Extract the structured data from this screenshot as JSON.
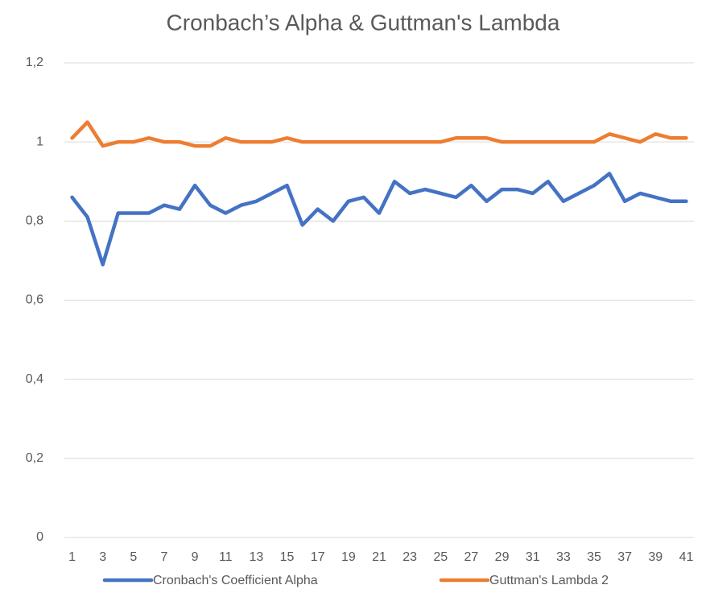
{
  "chart_data": {
    "type": "line",
    "title": "Cronbach’s Alpha & Guttman's Lambda",
    "categories": [
      "1",
      null,
      "3",
      null,
      "5",
      null,
      "7",
      null,
      "9",
      null,
      "11",
      null,
      "13",
      null,
      "15",
      null,
      "17",
      null,
      "19",
      null,
      "21",
      null,
      "23",
      null,
      "25",
      null,
      "27",
      null,
      "29",
      null,
      "31",
      null,
      "33",
      null,
      "35",
      null,
      "37",
      null,
      "39",
      null,
      "41"
    ],
    "series": [
      {
        "name": "Cronbach's Coefficient Alpha",
        "color": "#4472c4",
        "values": [
          0.86,
          0.81,
          0.69,
          0.82,
          0.82,
          0.82,
          0.84,
          0.83,
          0.89,
          0.84,
          0.82,
          0.84,
          0.85,
          0.87,
          0.89,
          0.79,
          0.83,
          0.8,
          0.85,
          0.86,
          0.82,
          0.9,
          0.87,
          0.88,
          0.87,
          0.86,
          0.89,
          0.85,
          0.88,
          0.88,
          0.87,
          0.9,
          0.85,
          0.87,
          0.89,
          0.92,
          0.85,
          0.87,
          0.86,
          0.85,
          0.85
        ]
      },
      {
        "name": "Guttman's Lambda 2",
        "color": "#ed7d31",
        "values": [
          1.01,
          1.05,
          0.99,
          1.0,
          1.0,
          1.01,
          1.0,
          1.0,
          0.99,
          0.99,
          1.01,
          1.0,
          1.0,
          1.0,
          1.01,
          1.0,
          1.0,
          1.0,
          1.0,
          1.0,
          1.0,
          1.0,
          1.0,
          1.0,
          1.0,
          1.01,
          1.01,
          1.01,
          1.0,
          1.0,
          1.0,
          1.0,
          1.0,
          1.0,
          1.0,
          1.02,
          1.01,
          1.0,
          1.02,
          1.01,
          1.01
        ]
      }
    ],
    "ylim": [
      0,
      1.2
    ],
    "yticks": [
      0,
      {
        "value": 0.2,
        "label": "0,2"
      },
      {
        "value": 0.4,
        "label": "0,4"
      },
      {
        "value": 0.6,
        "label": "0,6"
      },
      {
        "value": 0.8,
        "label": "0,8"
      },
      1,
      {
        "value": 1.2,
        "label": "1,2"
      }
    ],
    "grid": true,
    "legend": "bottom"
  }
}
